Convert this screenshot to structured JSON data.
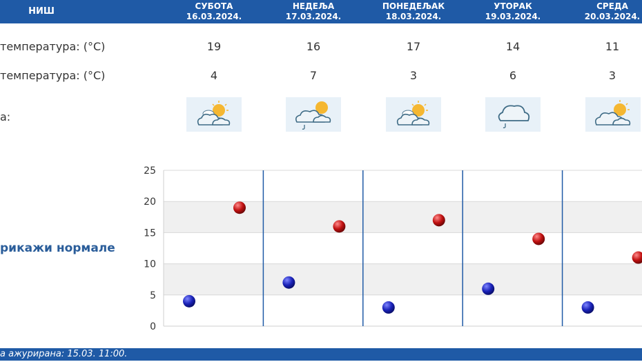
{
  "header": {
    "city": "НИШ",
    "days": [
      {
        "name": "СУБОТА",
        "date": "16.03.2024."
      },
      {
        "name": "НЕДЕЉА",
        "date": "17.03.2024."
      },
      {
        "name": "ПОНЕДЕЉАК",
        "date": "18.03.2024."
      },
      {
        "name": "УТОРАК",
        "date": "19.03.2024."
      },
      {
        "name": "СРЕДА",
        "date": "20.03.2024."
      }
    ]
  },
  "rows": {
    "max_label": "температура: (°C)",
    "min_label": "температура: (°C)",
    "weather_label": "а:",
    "max": [
      "19",
      "16",
      "17",
      "14",
      "11"
    ],
    "min": [
      "4",
      "7",
      "3",
      "6",
      "3"
    ],
    "weather_icons": [
      "sun-cloud-icon",
      "sun-cloud-rain-icon",
      "sun-cloud-icon",
      "cloud-rain-icon",
      "sun-cloud-icon"
    ]
  },
  "normals_link": "рикажи нормале",
  "footer": {
    "text": "а ажурирана:  15.03.  11:00."
  },
  "colors": {
    "header_bg": "#1f5aa6",
    "min_dot": "#1a22b8",
    "max_dot": "#c01010",
    "grid_band": "#f0f0f0",
    "day_separator": "#1f5aa6"
  },
  "chart_data": {
    "type": "scatter",
    "categories": [
      "16.03.2024.",
      "17.03.2024.",
      "18.03.2024.",
      "19.03.2024.",
      "20.03.2024."
    ],
    "series": [
      {
        "values": [
          4,
          7,
          3,
          6,
          3
        ]
      },
      {
        "values": [
          19,
          16,
          17,
          14,
          11
        ]
      }
    ],
    "yticks": [
      "0",
      "5",
      "10",
      "15",
      "20",
      "25"
    ],
    "ylim": [
      0,
      25
    ],
    "grid": true
  }
}
